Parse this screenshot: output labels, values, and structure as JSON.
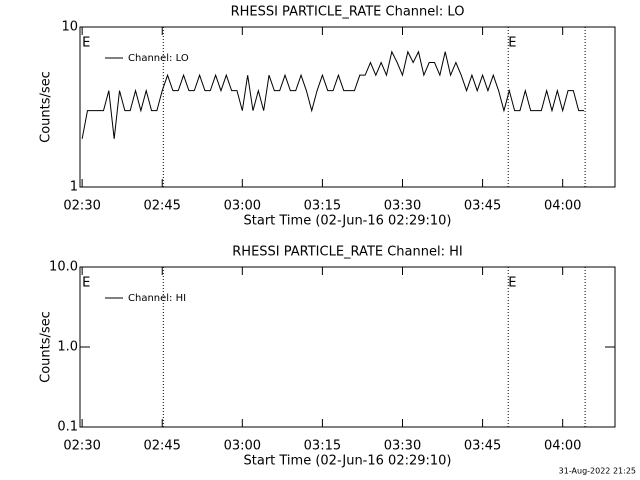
{
  "chart_data": [
    {
      "type": "line",
      "title": "RHESSI PARTICLE_RATE Channel: LO",
      "xlabel": "Start Time (02-Jun-16 02:29:10)",
      "ylabel": "Counts/sec",
      "log_y": true,
      "ylim": [
        1,
        10
      ],
      "yticks": [
        1,
        10
      ],
      "xlim": [
        -0.4,
        99.8
      ],
      "xticks": [
        {
          "value": 0,
          "label": "02:30"
        },
        {
          "value": 15,
          "label": "02:45"
        },
        {
          "value": 30,
          "label": "03:00"
        },
        {
          "value": 45,
          "label": "03:15"
        },
        {
          "value": 60,
          "label": "03:30"
        },
        {
          "value": 75,
          "label": "03:45"
        },
        {
          "value": 90,
          "label": "04:00"
        }
      ],
      "vlines": [
        15.2,
        79.8,
        94.2
      ],
      "annotations": [
        {
          "text": "E",
          "x": 0
        },
        {
          "text": "E",
          "x": 79.8
        }
      ],
      "series": [
        {
          "name": "Channel: LO",
          "color": "#000000",
          "x": [
            0,
            1,
            2,
            3,
            4,
            5,
            6,
            7,
            8,
            9,
            10,
            11,
            12,
            13,
            14,
            15,
            16,
            17,
            18,
            19,
            20,
            21,
            22,
            23,
            24,
            25,
            26,
            27,
            28,
            29,
            30,
            31,
            32,
            33,
            34,
            35,
            36,
            37,
            38,
            39,
            40,
            41,
            42,
            43,
            44,
            45,
            46,
            47,
            48,
            49,
            50,
            51,
            52,
            53,
            54,
            55,
            56,
            57,
            58,
            59,
            60,
            61,
            62,
            63,
            64,
            65,
            66,
            67,
            68,
            69,
            70,
            71,
            72,
            73,
            74,
            75,
            76,
            77,
            78,
            79,
            80,
            81,
            82,
            83,
            84,
            85,
            86,
            87,
            88,
            89,
            90,
            91,
            92,
            93,
            94
          ],
          "values": [
            2,
            3,
            3,
            3,
            3,
            4,
            2,
            4,
            3,
            3,
            4,
            3,
            4,
            3,
            3,
            4,
            5,
            4,
            4,
            5,
            4,
            4,
            5,
            4,
            4,
            5,
            4,
            5,
            4,
            4,
            3,
            5,
            3,
            4,
            3,
            5,
            4,
            4,
            5,
            4,
            4,
            5,
            4,
            3,
            4,
            5,
            4,
            4,
            5,
            4,
            4,
            4,
            5,
            5,
            6,
            5,
            6,
            5,
            7,
            6,
            5,
            7,
            6,
            7,
            5,
            6,
            6,
            5,
            7,
            5,
            6,
            5,
            4,
            5,
            4,
            5,
            4,
            5,
            4,
            3,
            4,
            3,
            3,
            4,
            3,
            3,
            3,
            4,
            3,
            4,
            3,
            4,
            4,
            3,
            3
          ]
        }
      ]
    },
    {
      "type": "line",
      "title": "RHESSI PARTICLE_RATE Channel: HI",
      "xlabel": "Start Time (02-Jun-16 02:29:10)",
      "ylabel": "Counts/sec",
      "log_y": true,
      "ylim": [
        0.1,
        10
      ],
      "yticks": [
        {
          "value": 0.1,
          "label": "0.1"
        },
        {
          "value": 1,
          "label": "1.0"
        },
        {
          "value": 10,
          "label": "10.0"
        }
      ],
      "xlim": [
        -0.4,
        99.8
      ],
      "xticks": [
        {
          "value": 0,
          "label": "02:30"
        },
        {
          "value": 15,
          "label": "02:45"
        },
        {
          "value": 30,
          "label": "03:00"
        },
        {
          "value": 45,
          "label": "03:15"
        },
        {
          "value": 60,
          "label": "03:30"
        },
        {
          "value": 75,
          "label": "03:45"
        },
        {
          "value": 90,
          "label": "04:00"
        }
      ],
      "vlines": [
        15.2,
        79.8,
        94.2
      ],
      "annotations": [
        {
          "text": "E",
          "x": 0
        },
        {
          "text": "E",
          "x": 79.8
        }
      ],
      "series": [
        {
          "name": "Channel: HI",
          "color": "#000000",
          "x": [],
          "values": []
        }
      ]
    }
  ],
  "footer": "31-Aug-2022 21:25"
}
